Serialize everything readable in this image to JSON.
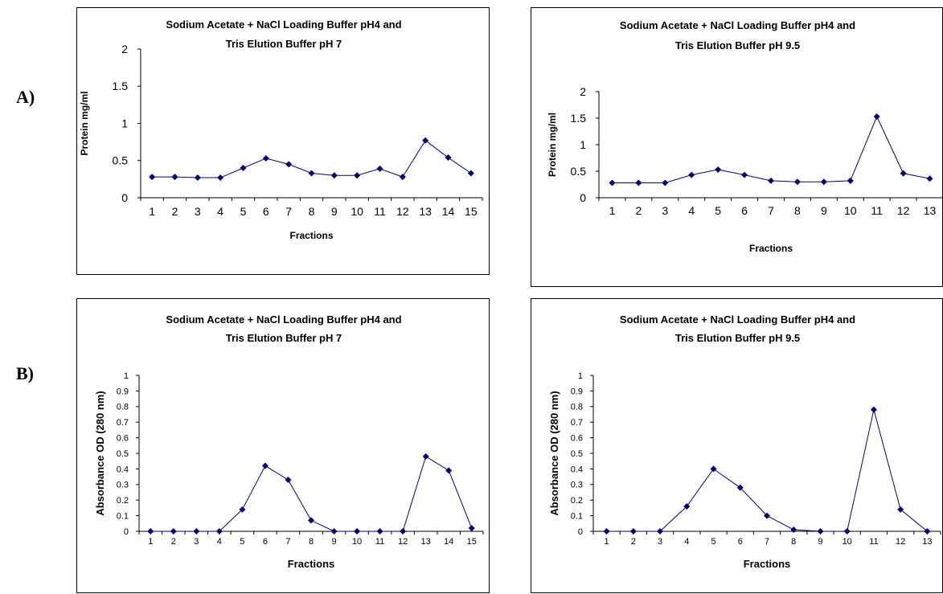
{
  "panel_labels": [
    "A)",
    "B)"
  ],
  "chart_data": [
    {
      "type": "line",
      "title": "Sodium Acetate + NaCl Loading Buffer pH4 and Tris Elution Buffer pH 7",
      "title_lines": [
        "Sodium Acetate + NaCl Loading Buffer pH4 and",
        "Tris Elution Buffer pH 7"
      ],
      "xlabel": "Fractions",
      "ylabel": "Protein mg/ml",
      "categories": [
        "1",
        "2",
        "3",
        "4",
        "5",
        "6",
        "7",
        "8",
        "9",
        "10",
        "11",
        "12",
        "13",
        "14",
        "15"
      ],
      "series": [
        {
          "values": [
            0.28,
            0.28,
            0.27,
            0.27,
            0.4,
            0.53,
            0.45,
            0.33,
            0.3,
            0.3,
            0.39,
            0.28,
            0.77,
            0.54,
            0.33
          ]
        }
      ],
      "ylim": [
        0,
        2
      ],
      "yticks": [
        "0",
        "0.5",
        "1",
        "1.5",
        "2"
      ],
      "marker": "diamond",
      "color": "#000080",
      "grid": false
    },
    {
      "type": "line",
      "title": "Sodium Acetate + NaCl Loading Buffer pH4 and Tris Elution Buffer pH 9.5",
      "title_lines": [
        "Sodium Acetate + NaCl Loading Buffer pH4 and",
        "Tris Elution Buffer pH 9.5"
      ],
      "xlabel": "Fractions",
      "ylabel": "Protein mg/ml",
      "categories": [
        "1",
        "2",
        "3",
        "4",
        "5",
        "6",
        "7",
        "8",
        "9",
        "10",
        "11",
        "12",
        "13"
      ],
      "series": [
        {
          "values": [
            0.28,
            0.28,
            0.28,
            0.43,
            0.53,
            0.43,
            0.32,
            0.3,
            0.3,
            0.32,
            1.53,
            0.46,
            0.36
          ]
        }
      ],
      "ylim": [
        0,
        2
      ],
      "yticks": [
        "0",
        "0.5",
        "1",
        "1.5",
        "2"
      ],
      "marker": "diamond",
      "color": "#000080",
      "grid": false
    },
    {
      "type": "line",
      "title": "Sodium Acetate + NaCl Loading Buffer pH4 and Tris Elution Buffer pH 7",
      "title_lines": [
        "Sodium Acetate + NaCl Loading Buffer pH4 and",
        "Tris Elution Buffer pH 7"
      ],
      "xlabel": "Fractions",
      "ylabel": "Absorbance OD (280 nm)",
      "categories": [
        "1",
        "2",
        "3",
        "4",
        "5",
        "6",
        "7",
        "8",
        "9",
        "10",
        "11",
        "12",
        "13",
        "14",
        "15"
      ],
      "series": [
        {
          "values": [
            0,
            0,
            0,
            0,
            0.14,
            0.42,
            0.33,
            0.07,
            0,
            0,
            0,
            0,
            0.48,
            0.39,
            0.02
          ]
        }
      ],
      "ylim": [
        0,
        1
      ],
      "yticks": [
        "0",
        "0.1",
        "0.2",
        "0.3",
        "0.4",
        "0.5",
        "0.6",
        "0.7",
        "0.8",
        "0.9",
        "1"
      ],
      "marker": "diamond",
      "color": "#000080",
      "grid": false
    },
    {
      "type": "line",
      "title": "Sodium Acetate + NaCl Loading Buffer pH4 and Tris Elution Buffer pH 9.5",
      "title_lines": [
        "Sodium Acetate + NaCl Loading Buffer pH4 and",
        "Tris Elution Buffer pH 9.5"
      ],
      "xlabel": "Fractions",
      "ylabel": "Absorbance OD (280 nm)",
      "categories": [
        "1",
        "2",
        "3",
        "4",
        "5",
        "6",
        "7",
        "8",
        "9",
        "10",
        "11",
        "12",
        "13"
      ],
      "series": [
        {
          "values": [
            0,
            0,
            0,
            0.16,
            0.4,
            0.28,
            0.1,
            0.01,
            0,
            0,
            0.78,
            0.14,
            0
          ]
        }
      ],
      "ylim": [
        0,
        1
      ],
      "yticks": [
        "0",
        "0.1",
        "0.2",
        "0.3",
        "0.4",
        "0.5",
        "0.6",
        "0.7",
        "0.8",
        "0.9",
        "1"
      ],
      "marker": "diamond",
      "color": "#000080",
      "grid": false
    }
  ]
}
